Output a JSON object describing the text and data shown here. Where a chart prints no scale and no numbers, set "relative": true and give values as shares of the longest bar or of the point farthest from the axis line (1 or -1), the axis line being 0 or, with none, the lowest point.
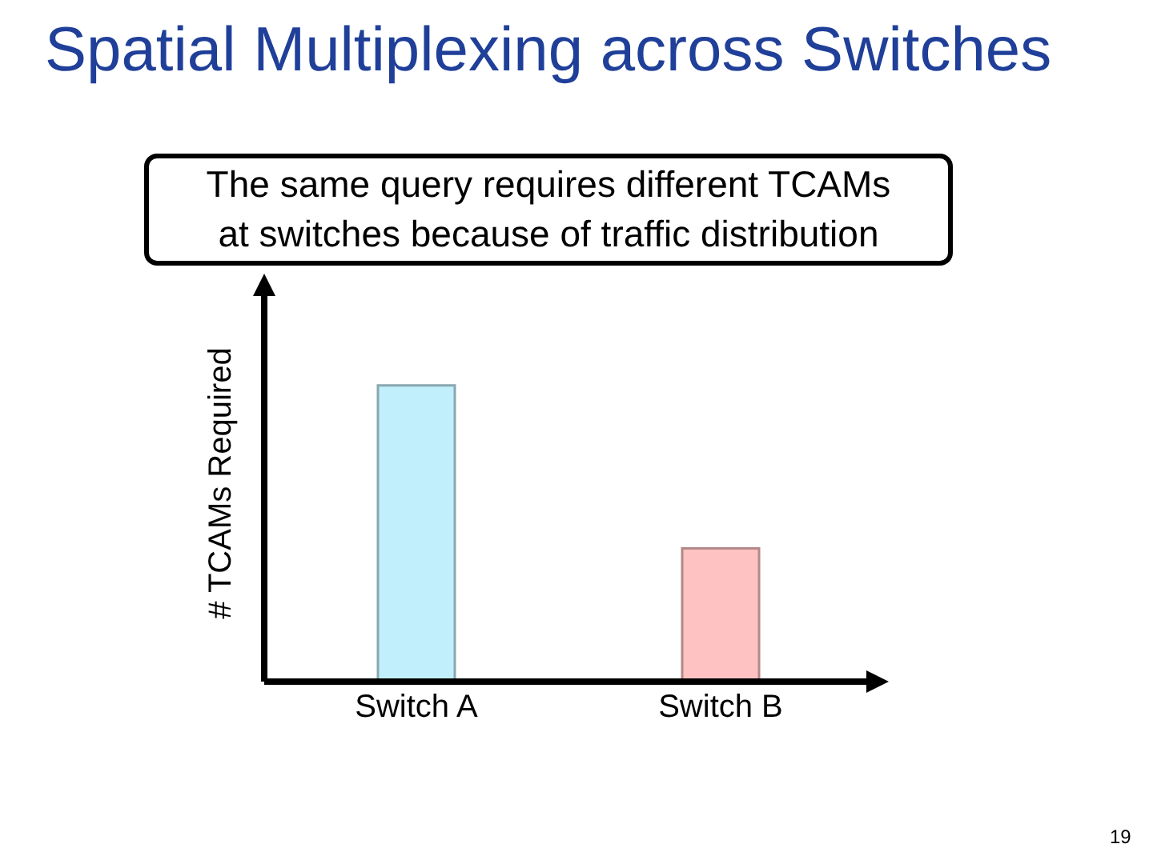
{
  "chart_data": {
    "type": "bar",
    "title": "Spatial Multiplexing across Switches",
    "ylabel": "# TCAMs Required",
    "categories": [
      "Switch A",
      "Switch B"
    ],
    "values": [
      1,
      0.45
    ],
    "colors": [
      "#c2effc",
      "#ffc2c2"
    ],
    "relative": true,
    "annotations": [
      "The same query requires different TCAMs at switches because of traffic distribution",
      "19"
    ]
  }
}
